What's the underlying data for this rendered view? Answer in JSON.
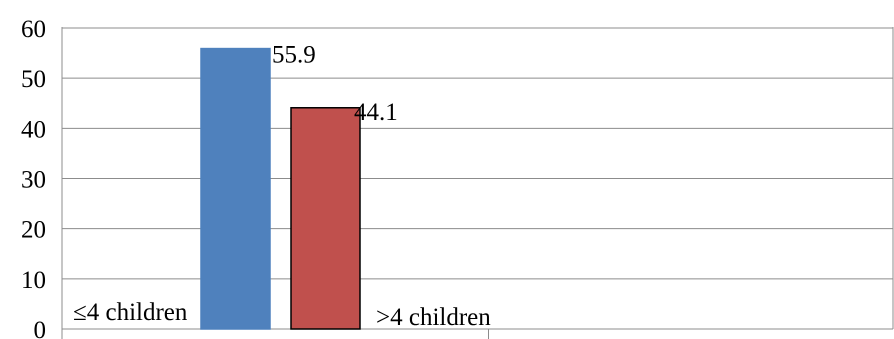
{
  "chart_data": {
    "type": "bar",
    "categories": [
      "≤4 children",
      ">4 children"
    ],
    "values": [
      55.9,
      44.1
    ],
    "data_labels": [
      "55.9",
      "44.1"
    ],
    "colors": [
      "#4f81bd",
      "#c0504d"
    ],
    "bar_outline": [
      "#4f81bd",
      "#000000"
    ],
    "y_ticks": [
      "0",
      "10",
      "20",
      "30",
      "40",
      "50",
      "60"
    ],
    "ylim": [
      0,
      60
    ],
    "title": "",
    "xlabel": "",
    "ylabel": "",
    "grid": true,
    "legend": "none"
  }
}
